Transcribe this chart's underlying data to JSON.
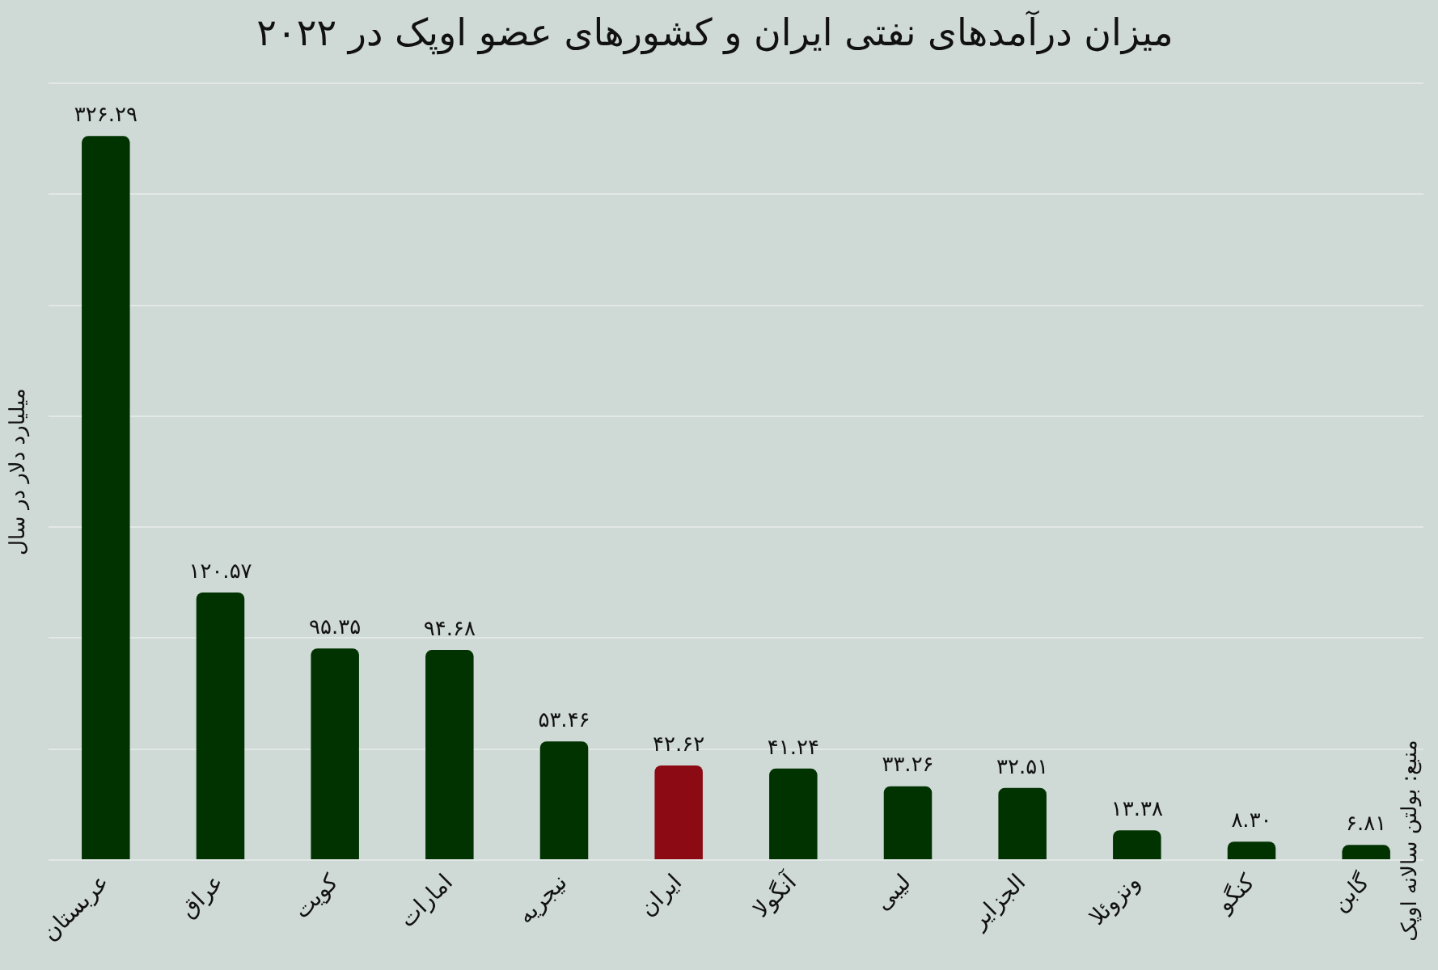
{
  "chart_data": {
    "type": "bar",
    "title": "میزان درآمدهای نفتی ایران و کشورهای عضو اوپک در ۲۰۲۲",
    "ylabel": "میلیارد دلار در سال",
    "annotations": [
      "منبع: بولتن سالانه اوپک"
    ],
    "categories": [
      "عربستان",
      "عراق",
      "کویت",
      "امارات",
      "نیجریه",
      "ایران",
      "آنگولا",
      "لیبی",
      "الجزایر",
      "ونزوئلا",
      "کنگو",
      "گابن"
    ],
    "values": [
      326.29,
      120.57,
      95.35,
      94.68,
      53.46,
      42.62,
      41.24,
      33.26,
      32.51,
      13.38,
      8.3,
      6.81
    ],
    "value_labels": [
      "۳۲۶.۲۹",
      "۱۲۰.۵۷",
      "۹۵.۳۵",
      "۹۴.۶۸",
      "۵۳.۴۶",
      "۴۲.۶۲",
      "۴۱.۲۴",
      "۳۳.۲۶",
      "۳۲.۵۱",
      "۱۳.۳۸",
      "۸.۳۰",
      "۶.۸۱"
    ],
    "colors": [
      "#013301",
      "#013301",
      "#013301",
      "#013301",
      "#013301",
      "#8c0a13",
      "#013301",
      "#013301",
      "#013301",
      "#013301",
      "#013301",
      "#013301"
    ],
    "ylim": [
      0,
      350
    ],
    "yticks": [
      {
        "value": 0,
        "label": null
      },
      {
        "value": 50,
        "label": null
      },
      {
        "value": 100,
        "label": null
      },
      {
        "value": 150,
        "label": null
      },
      {
        "value": 200,
        "label": null
      },
      {
        "value": 250,
        "label": null
      },
      {
        "value": 300,
        "label": null
      },
      {
        "value": 350,
        "label": null
      }
    ],
    "tick_labels": "x",
    "grid": "y"
  }
}
